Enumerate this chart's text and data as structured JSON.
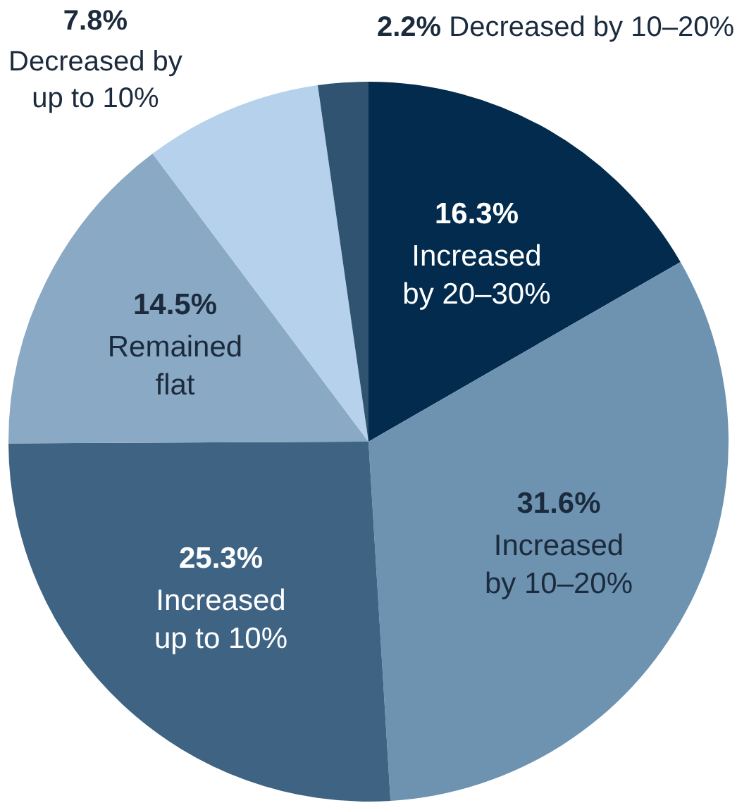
{
  "chart_data": {
    "type": "pie",
    "categories": [
      "Increased by 20–30%",
      "Increased by 10–20%",
      "Increased up to 10%",
      "Remained flat",
      "Decreased by up to 10%",
      "Decreased by 10–20%"
    ],
    "values": [
      16.3,
      31.6,
      25.3,
      14.5,
      7.8,
      2.2
    ],
    "value_labels": [
      "16.3%",
      "31.6%",
      "25.3%",
      "14.5%",
      "7.8%",
      "2.2%"
    ],
    "colors": [
      "#022b4e",
      "#6e93b1",
      "#3f6383",
      "#8aa9c4",
      "#b5d1eb",
      "#2f5371"
    ],
    "legend": false
  }
}
